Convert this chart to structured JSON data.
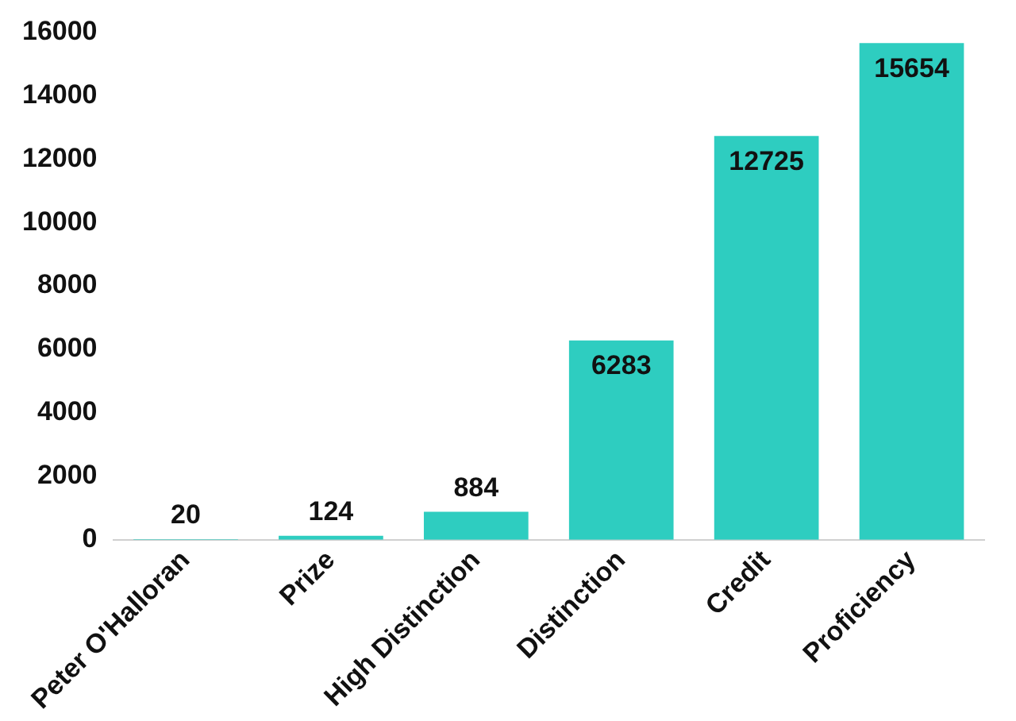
{
  "chart_data": {
    "type": "bar",
    "categories": [
      "Peter O'Halloran",
      "Prize",
      "High Distinction",
      "Distinction",
      "Credit",
      "Proficiency"
    ],
    "values": [
      20,
      124,
      884,
      6283,
      12725,
      15654
    ],
    "color": "#2ecdc0",
    "ylim": [
      0,
      16000
    ],
    "yticks": [
      0,
      2000,
      4000,
      6000,
      8000,
      10000,
      12000,
      14000,
      16000
    ],
    "grid": false,
    "legend": false,
    "data_labels": true
  }
}
